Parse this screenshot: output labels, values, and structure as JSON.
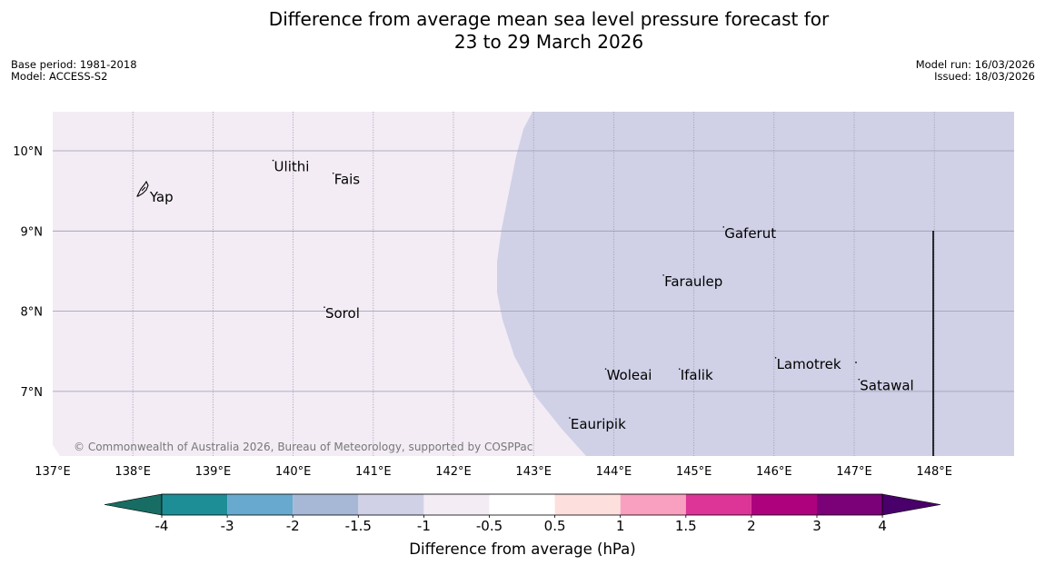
{
  "title_line1": "Difference from average mean sea level pressure forecast for",
  "title_line2": "23 to 29 March 2026",
  "base_period": "Base period: 1981-2018",
  "model": "Model: ACCESS-S2",
  "model_run": "Model run: 16/03/2026",
  "issued": "Issued: 18/03/2026",
  "copyright": "© Commonwealth of Australia 2026, Bureau of Meteorology, supported by COSPPac",
  "colors": {
    "ocean_light": "#f3ecf5",
    "ocean_anomaly": "#d0d1e6",
    "grid": "#9a9ab5"
  },
  "map": {
    "lon_ticks": [
      "137°E",
      "138°E",
      "139°E",
      "140°E",
      "141°E",
      "142°E",
      "143°E",
      "144°E",
      "145°E",
      "146°E",
      "147°E",
      "148°E"
    ],
    "lat_ticks": [
      "10°N",
      "9°N",
      "8°N",
      "7°N"
    ],
    "places": [
      {
        "name": "Yap",
        "lon": 138.2,
        "lat": 9.5
      },
      {
        "name": "Ulithi",
        "lon": 139.75,
        "lat": 9.88
      },
      {
        "name": "Fais",
        "lon": 140.5,
        "lat": 9.72
      },
      {
        "name": "Gaferut",
        "lon": 145.37,
        "lat": 9.05
      },
      {
        "name": "Faraulep",
        "lon": 144.62,
        "lat": 8.45
      },
      {
        "name": "Sorol",
        "lon": 140.39,
        "lat": 8.05
      },
      {
        "name": "Woleai",
        "lon": 143.9,
        "lat": 7.28
      },
      {
        "name": "Ifalik",
        "lon": 144.82,
        "lat": 7.28
      },
      {
        "name": "Lamotrek",
        "lon": 146.02,
        "lat": 7.42
      },
      {
        "name": "Satawal",
        "lon": 147.06,
        "lat": 7.15
      },
      {
        "name": "Eauripik",
        "lon": 143.45,
        "lat": 6.67
      }
    ]
  },
  "colorbar": {
    "title": "Difference from average (hPa)",
    "tick_labels": [
      "-4",
      "-3",
      "-2",
      "-1.5",
      "-1",
      "-0.5",
      "0.5",
      "1",
      "1.5",
      "2",
      "3",
      "4"
    ],
    "colors": [
      "#176d63",
      "#1d8e96",
      "#67a9cf",
      "#a6b8d6",
      "#d0d1e6",
      "#f3ecf5",
      "#ffffff",
      "#fde0dd",
      "#f99fbf",
      "#dd3497",
      "#ae017e",
      "#7a0177",
      "#49006a"
    ]
  }
}
